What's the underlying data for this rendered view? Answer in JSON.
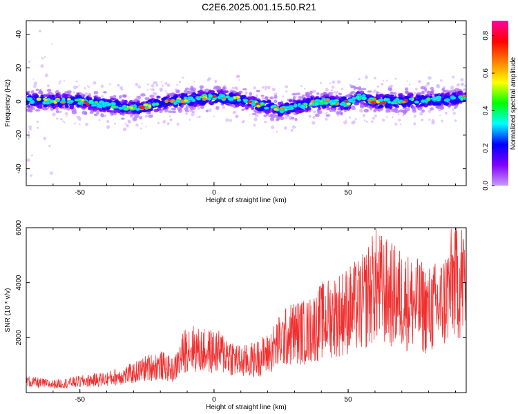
{
  "title": "C2E6.2025.001.15.50.R21",
  "chart_data": [
    {
      "type": "heatmap",
      "xlabel": "Height of straight line (km)",
      "ylabel": "Frequency (Hz)",
      "xlim": [
        -70,
        94
      ],
      "ylim": [
        -50,
        48
      ],
      "xticks": [
        -50,
        0,
        50
      ],
      "yticks": [
        -40,
        -20,
        0,
        20,
        40
      ],
      "colorbar": {
        "label": "Normalized spectral amplitude",
        "range": [
          0.0,
          0.88
        ],
        "ticks": [
          "0.0",
          "0.2",
          "0.4",
          "0.6",
          "0.8"
        ],
        "colors": [
          "#cc99ff",
          "#7f00ff",
          "#0000ff",
          "#00ffff",
          "#00ff00",
          "#ffff00",
          "#ff8000",
          "#ff0000",
          "#ff00a0"
        ]
      },
      "ridge": {
        "x": [
          -70,
          -60,
          -50,
          -40,
          -30,
          -25,
          -20,
          -10,
          0,
          5,
          10,
          20,
          25,
          30,
          40,
          50,
          54,
          60,
          70,
          80,
          94
        ],
        "y": [
          1,
          0,
          0,
          -2,
          -4,
          -3,
          -1,
          1,
          3,
          2,
          1,
          -3,
          -5,
          -3,
          0,
          -1,
          3,
          0,
          0,
          1,
          2
        ]
      },
      "grid": false
    },
    {
      "type": "line",
      "xlabel": "Height of straight line (km)",
      "ylabel": "SNR (10 * v/v)",
      "xlim": [
        -70,
        94
      ],
      "ylim": [
        0,
        6000
      ],
      "xticks": [
        -50,
        0,
        50
      ],
      "yticks": [
        2000,
        4000,
        6000
      ],
      "series": [
        {
          "color": "#f03030",
          "x": [
            -70,
            -60,
            -50,
            -40,
            -30,
            -25,
            -20,
            -15,
            -10,
            -5,
            0,
            5,
            10,
            15,
            20,
            25,
            30,
            35,
            40,
            45,
            50,
            55,
            60,
            65,
            70,
            75,
            80,
            85,
            90,
            94
          ],
          "y": [
            400,
            300,
            400,
            500,
            700,
            900,
            1000,
            800,
            1700,
            1500,
            1500,
            1400,
            1100,
            1200,
            1400,
            1900,
            2200,
            2200,
            2600,
            2800,
            3000,
            3200,
            3900,
            3600,
            3400,
            3200,
            3000,
            3200,
            4200,
            4000
          ]
        }
      ],
      "grid": false
    }
  ]
}
